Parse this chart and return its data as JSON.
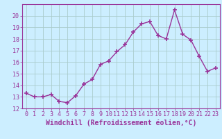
{
  "x": [
    0,
    1,
    2,
    3,
    4,
    5,
    6,
    7,
    8,
    9,
    10,
    11,
    12,
    13,
    14,
    15,
    16,
    17,
    18,
    19,
    20,
    21,
    22,
    23
  ],
  "y": [
    13.3,
    13.0,
    13.0,
    13.2,
    12.6,
    12.5,
    13.1,
    14.1,
    14.5,
    15.8,
    16.1,
    16.9,
    17.5,
    18.6,
    19.3,
    19.5,
    18.3,
    18.0,
    20.5,
    18.4,
    17.9,
    16.5,
    15.2,
    15.5
  ],
  "line_color": "#993399",
  "marker": "+",
  "marker_size": 5,
  "marker_lw": 1.2,
  "bg_color": "#cceeff",
  "grid_color": "#aacccc",
  "xlabel": "Windchill (Refroidissement éolien,°C)",
  "ylim": [
    12,
    21
  ],
  "xlim": [
    -0.5,
    23.5
  ],
  "yticks": [
    12,
    13,
    14,
    15,
    16,
    17,
    18,
    19,
    20
  ],
  "ytick_labels": [
    "12",
    "13",
    "14",
    "15",
    "16",
    "17",
    "18",
    "19",
    "20"
  ],
  "xticks": [
    0,
    1,
    2,
    3,
    4,
    5,
    6,
    7,
    8,
    9,
    10,
    11,
    12,
    13,
    14,
    15,
    16,
    17,
    18,
    19,
    20,
    21,
    22,
    23
  ],
  "tick_color": "#993399",
  "label_color": "#993399",
  "tick_fontsize": 6.0,
  "xlabel_fontsize": 7.0,
  "line_width": 1.0
}
